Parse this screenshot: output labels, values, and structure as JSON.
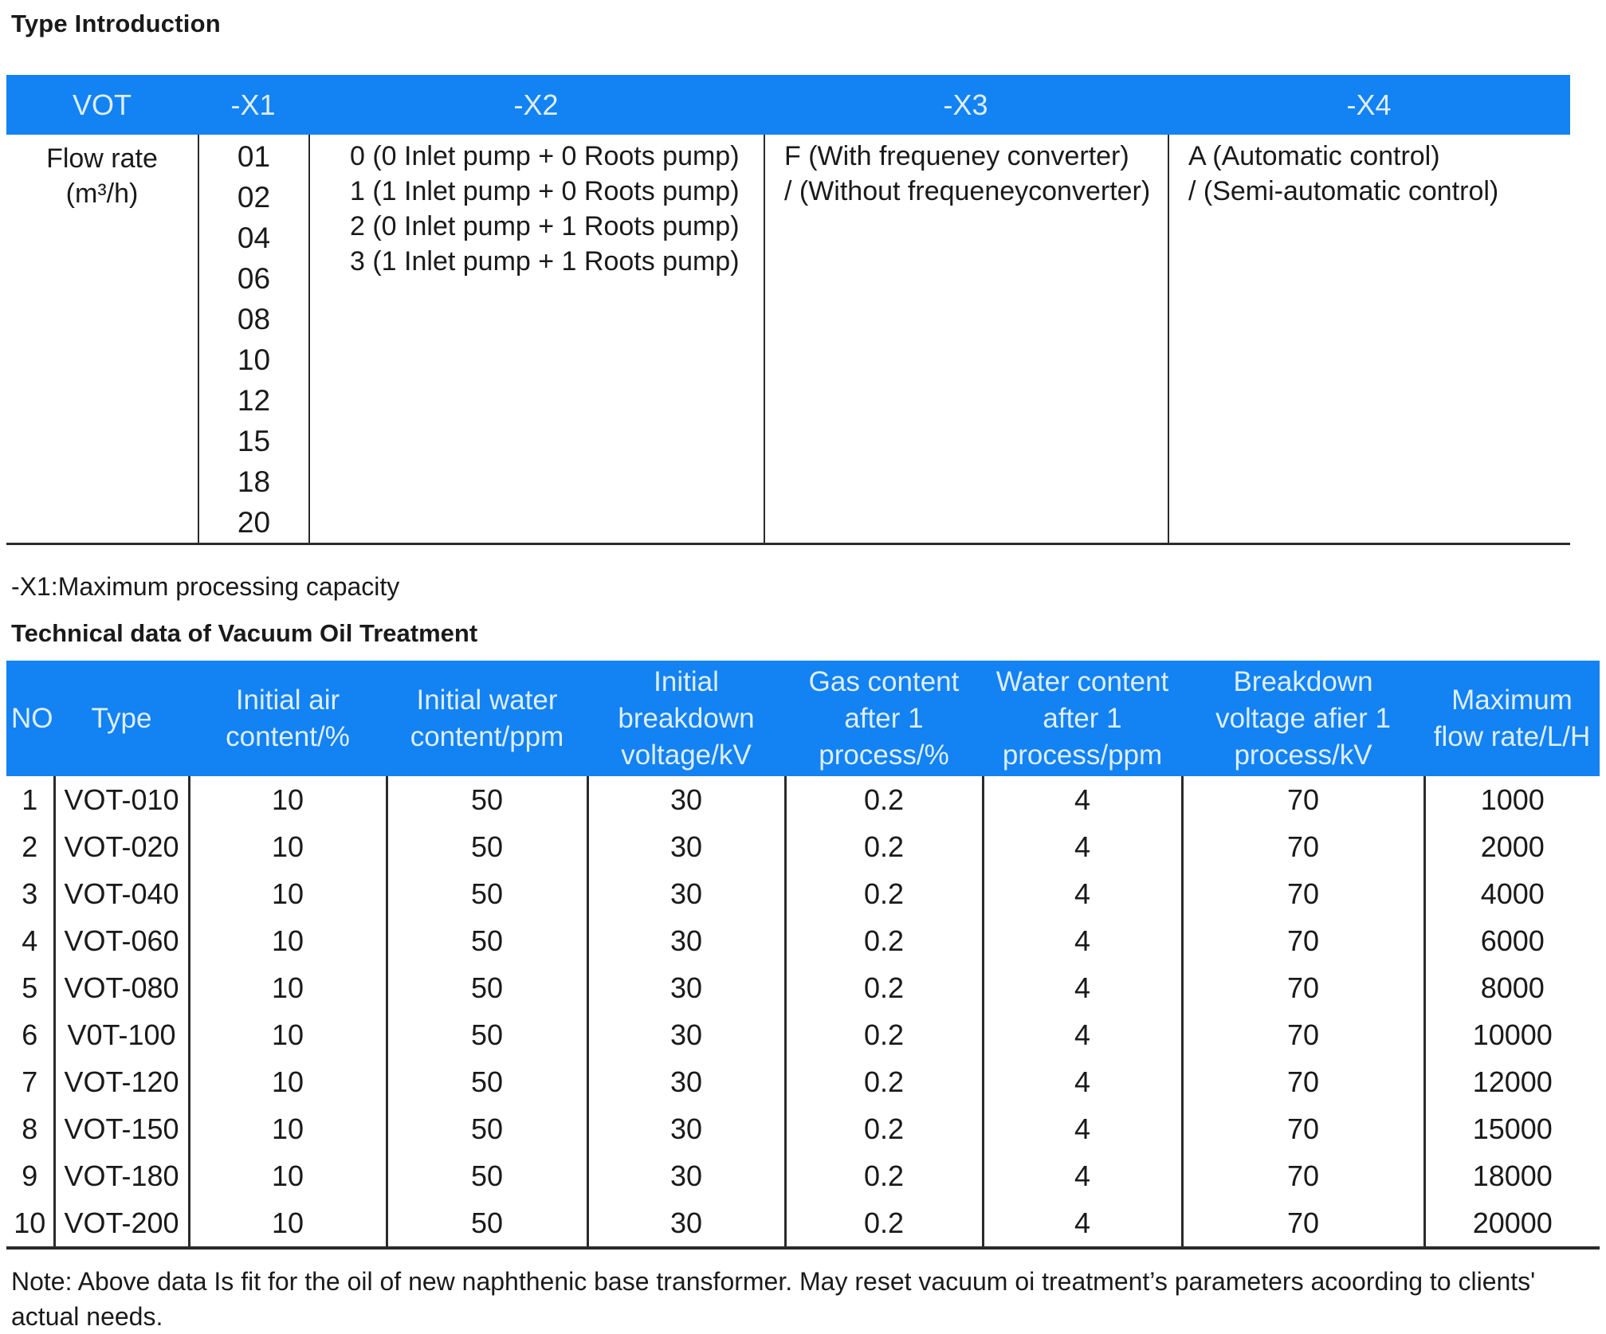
{
  "page": {
    "title": "Type Introduction",
    "x1_note": "-X1:Maximum processing capacity",
    "section2_title": "Technical data of Vacuum Oil Treatment",
    "footnote": "Note: Above data Is fit for the oil of new naphthenic base transformer. May reset vacuum oi treatment’s parameters acoording to clients' actual needs."
  },
  "colors": {
    "header_bg": "#1382f2",
    "header_text": "#ddeeff",
    "body_text": "#1a1a1a",
    "border": "#2b2b2b"
  },
  "type_table": {
    "headers": [
      "VOT",
      "-X1",
      "-X2",
      "-X3",
      "-X4"
    ],
    "vot_lines": [
      "Flow rate",
      "(m³/h)"
    ],
    "x1_values": [
      "01",
      "02",
      "04",
      "06",
      "08",
      "10",
      "12",
      "15",
      "18",
      "20"
    ],
    "x2_lines": [
      "0 (0 Inlet pump + 0 Roots pump)",
      "1 (1 Inlet pump + 0 Roots pump)",
      "2 (0 Inlet pump + 1 Roots pump)",
      "3 (1 Inlet pump + 1 Roots pump)"
    ],
    "x3_lines": [
      "F (With frequeney converter)",
      "/ (Without frequeneyconverter)"
    ],
    "x4_lines": [
      "A (Automatic control)",
      "/ (Semi-automatic control)"
    ]
  },
  "tech_table": {
    "headers": [
      "NO",
      "Type",
      "Initial air content/%",
      "Initial water content/ppm",
      "Initial breakdown voltage/kV",
      "Gas content after 1 process/%",
      "Water content after 1 process/ppm",
      "Breakdown voltage afier 1 process/kV",
      "Maximum flow rate/L/H"
    ],
    "rows": [
      [
        "1",
        "VOT-010",
        "10",
        "50",
        "30",
        "0.2",
        "4",
        "70",
        "1000"
      ],
      [
        "2",
        "VOT-020",
        "10",
        "50",
        "30",
        "0.2",
        "4",
        "70",
        "2000"
      ],
      [
        "3",
        "VOT-040",
        "10",
        "50",
        "30",
        "0.2",
        "4",
        "70",
        "4000"
      ],
      [
        "4",
        "VOT-060",
        "10",
        "50",
        "30",
        "0.2",
        "4",
        "70",
        "6000"
      ],
      [
        "5",
        "VOT-080",
        "10",
        "50",
        "30",
        "0.2",
        "4",
        "70",
        "8000"
      ],
      [
        "6",
        "V0T-100",
        "10",
        "50",
        "30",
        "0.2",
        "4",
        "70",
        "10000"
      ],
      [
        "7",
        "VOT-120",
        "10",
        "50",
        "30",
        "0.2",
        "4",
        "70",
        "12000"
      ],
      [
        "8",
        "VOT-150",
        "10",
        "50",
        "30",
        "0.2",
        "4",
        "70",
        "15000"
      ],
      [
        "9",
        "VOT-180",
        "10",
        "50",
        "30",
        "0.2",
        "4",
        "70",
        "18000"
      ],
      [
        "10",
        "VOT-200",
        "10",
        "50",
        "30",
        "0.2",
        "4",
        "70",
        "20000"
      ]
    ]
  }
}
